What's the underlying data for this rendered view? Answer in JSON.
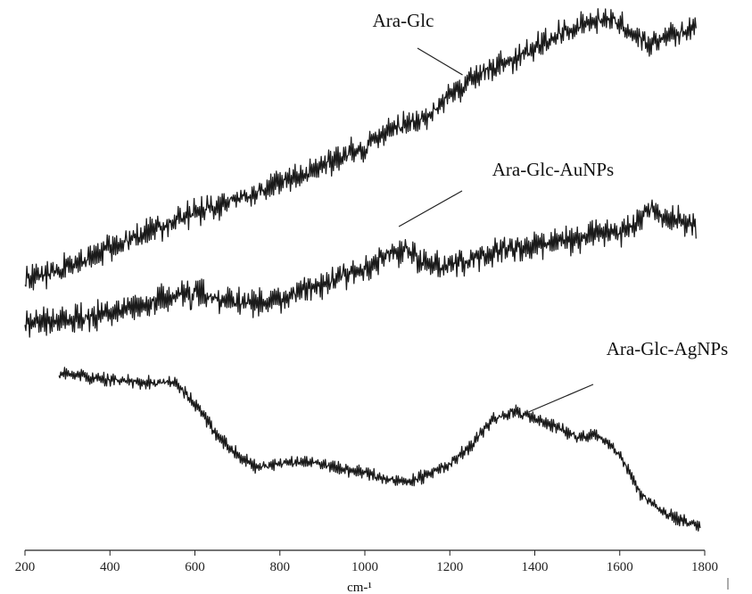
{
  "chart_data": {
    "type": "line",
    "xlabel": "cm-¹",
    "x_ticks": [
      "200",
      "400",
      "600",
      "800",
      "1000",
      "1200",
      "1400",
      "1600",
      "1800"
    ],
    "xlim": [
      200,
      1800
    ],
    "y_ticks_shown": false,
    "grid": false,
    "legend": "none",
    "series": [
      {
        "name": "Ara-Glc",
        "color": "#1a1a1a",
        "x": [
          200,
          300,
          400,
          500,
          600,
          700,
          800,
          900,
          1000,
          1050,
          1100,
          1150,
          1200,
          1250,
          1300,
          1350,
          1400,
          1450,
          1500,
          1550,
          1600,
          1630,
          1660,
          1700,
          1750,
          1780
        ],
        "y": [
          312,
          300,
          278,
          258,
          238,
          222,
          205,
          186,
          165,
          148,
          140,
          128,
          108,
          90,
          76,
          66,
          54,
          42,
          30,
          20,
          24,
          40,
          48,
          44,
          36,
          26
        ]
      },
      {
        "name": "Ara-Glc-AuNPs",
        "color": "#1a1a1a",
        "x": [
          200,
          300,
          400,
          500,
          600,
          700,
          800,
          900,
          1000,
          1050,
          1100,
          1150,
          1200,
          1300,
          1400,
          1500,
          1550,
          1600,
          1640,
          1670,
          1700,
          1750,
          1780
        ],
        "y": [
          360,
          360,
          350,
          338,
          328,
          340,
          335,
          318,
          300,
          285,
          280,
          300,
          296,
          284,
          275,
          268,
          260,
          262,
          250,
          232,
          242,
          250,
          250
        ]
      },
      {
        "name": "Ara-Glc-AgNPs",
        "color": "#1a1a1a",
        "x": [
          280,
          350,
          400,
          450,
          500,
          550,
          600,
          650,
          700,
          750,
          800,
          850,
          900,
          950,
          1000,
          1050,
          1100,
          1150,
          1200,
          1250,
          1300,
          1350,
          1400,
          1450,
          1500,
          1550,
          1600,
          1650,
          1700,
          1750,
          1790
        ],
        "y": [
          418,
          422,
          426,
          428,
          430,
          428,
          452,
          486,
          510,
          525,
          520,
          518,
          520,
          525,
          530,
          538,
          540,
          532,
          520,
          500,
          470,
          462,
          470,
          478,
          490,
          488,
          510,
          555,
          575,
          583,
          592
        ]
      }
    ],
    "annotations": [
      {
        "text": "Ara-Glc",
        "points_to": [
          1230,
          84
        ]
      },
      {
        "text": "Ara-Glc-AuNPs",
        "points_to": [
          1080,
          254
        ]
      },
      {
        "text": "Ara-Glc-AgNPs",
        "points_to": [
          1385,
          462
        ]
      }
    ]
  },
  "corner_mark": "|"
}
